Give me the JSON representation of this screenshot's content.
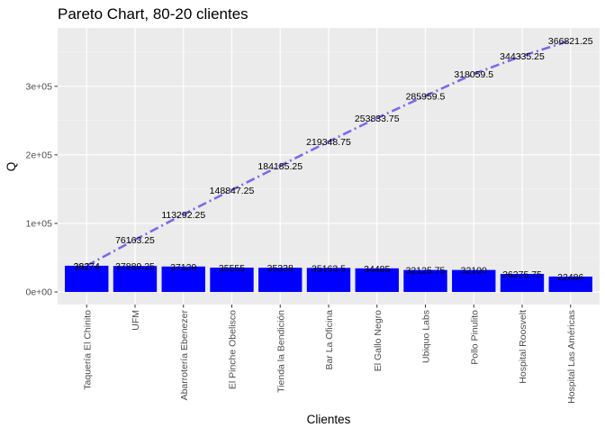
{
  "chart_data": {
    "type": "bar",
    "title": "Pareto Chart, 80-20 clientes",
    "xlabel": "Clientes",
    "ylabel": "Q",
    "ylim": [
      -18341,
      385162
    ],
    "y_ticks": [
      0,
      100000,
      200000,
      300000
    ],
    "y_tick_labels": [
      "0e+00",
      "1e+05",
      "2e+05",
      "3e+05"
    ],
    "grid": true,
    "categories": [
      "Taquería El Chinito",
      "UFM",
      "Abarrotería Ebenezer",
      "El Pinche Obelisco",
      "Tienda la Bendición",
      "Bar La Oficina",
      "El Gallo Negro",
      "Ubiquo Labs",
      "Pollo Pinulito",
      "Hospital Roosvelt",
      "Hospital Las Américas"
    ],
    "series": [
      {
        "type": "bar",
        "values": [
          38274,
          37889.25,
          37129,
          35555,
          35338,
          35163.5,
          34485,
          32125.75,
          32100,
          26275.75,
          22486
        ],
        "labels": [
          "38274",
          "37889.25",
          "37129",
          "35555",
          "35338",
          "35163.5",
          "34485",
          "32125.75",
          "32100",
          "26275.75",
          "22486"
        ],
        "color": "#0000ff"
      },
      {
        "type": "line",
        "line_style": "dashdot",
        "values": [
          38274,
          76163.25,
          113292.25,
          148847.25,
          184185.25,
          219348.75,
          253833.75,
          285959.5,
          318059.5,
          344335.25,
          366821.25
        ],
        "labels": [
          "38274",
          "76163.25",
          "113292.25",
          "148847.25",
          "184185.25",
          "219348.75",
          "253833.75",
          "285959.5",
          "318059.5",
          "344335.25",
          "366821.25"
        ],
        "color": "#7b68ee"
      }
    ]
  }
}
